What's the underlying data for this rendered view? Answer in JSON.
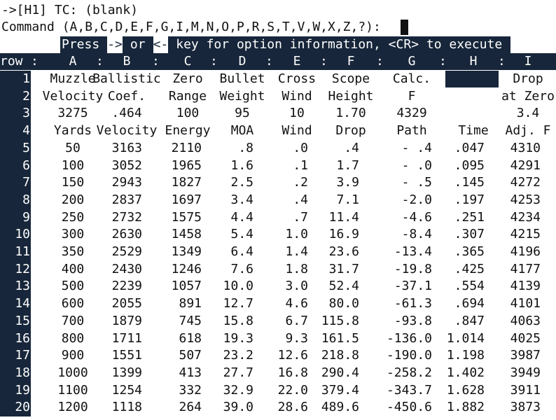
{
  "status_line": "->[H1] TC: (blank)",
  "command_line": "Command (A,B,C,D,E,F,G,I,M,N,O,P,R,S,T,V,W,X,Z,?):",
  "prompt": {
    "parts": [
      "Press",
      "->",
      "or",
      "<-",
      "key for option information, <CR> to execute"
    ]
  },
  "table": {
    "row_label": "row",
    "separator": ":",
    "columns": [
      "A",
      "B",
      "C",
      "D",
      "E",
      "F",
      "G",
      "H",
      "I"
    ],
    "row_numbers": [
      "1",
      "2",
      "3",
      "4",
      "5",
      "6",
      "7",
      "8",
      "9",
      "10",
      "11",
      "12",
      "13",
      "14",
      "15",
      "16",
      "17",
      "18",
      "19",
      "20"
    ],
    "rows": [
      [
        "Muzzle",
        "Ballistic",
        "Zero",
        "Bullet",
        "Cross",
        "Scope",
        "Calc.",
        "",
        "Drop"
      ],
      [
        "Velocity",
        "Coef.",
        "Range",
        "Weight",
        "Wind",
        "Height",
        "F",
        "",
        "at Zero"
      ],
      [
        "3275",
        ".464",
        "100",
        "95",
        "10",
        "1.70",
        "4329",
        "",
        "3.4"
      ],
      [
        "Yards",
        "Velocity",
        "Energy",
        "MOA",
        "Wind",
        "Drop",
        "Path",
        "Time",
        "Adj. F"
      ],
      [
        "50",
        "3163",
        "2110",
        ".8",
        ".0",
        ".4",
        "- .4",
        ".047",
        "4310"
      ],
      [
        "100",
        "3052",
        "1965",
        "1.6",
        ".1",
        "1.7",
        "- .0",
        ".095",
        "4291"
      ],
      [
        "150",
        "2943",
        "1827",
        "2.5",
        ".2",
        "3.9",
        "- .5",
        ".145",
        "4272"
      ],
      [
        "200",
        "2837",
        "1697",
        "3.4",
        ".4",
        "7.1",
        "-2.0",
        ".197",
        "4253"
      ],
      [
        "250",
        "2732",
        "1575",
        "4.4",
        ".7",
        "11.4",
        "-4.6",
        ".251",
        "4234"
      ],
      [
        "300",
        "2630",
        "1458",
        "5.4",
        "1.0",
        "16.9",
        "-8.4",
        ".307",
        "4215"
      ],
      [
        "350",
        "2529",
        "1349",
        "6.4",
        "1.4",
        "23.6",
        "-13.4",
        ".365",
        "4196"
      ],
      [
        "400",
        "2430",
        "1246",
        "7.6",
        "1.8",
        "31.7",
        "-19.8",
        ".425",
        "4177"
      ],
      [
        "500",
        "2239",
        "1057",
        "10.0",
        "3.0",
        "52.4",
        "-37.1",
        ".554",
        "4139"
      ],
      [
        "600",
        "2055",
        "891",
        "12.7",
        "4.6",
        "80.0",
        "-61.3",
        ".694",
        "4101"
      ],
      [
        "700",
        "1879",
        "745",
        "15.8",
        "6.7",
        "115.8",
        "-93.8",
        ".847",
        "4063"
      ],
      [
        "800",
        "1711",
        "618",
        "19.3",
        "9.3",
        "161.5",
        "-136.0",
        "1.014",
        "4025"
      ],
      [
        "900",
        "1551",
        "507",
        "23.2",
        "12.6",
        "218.8",
        "-190.0",
        "1.198",
        "3987"
      ],
      [
        "1000",
        "1399",
        "413",
        "27.7",
        "16.8",
        "290.4",
        "-258.2",
        "1.402",
        "3949"
      ],
      [
        "1100",
        "1254",
        "332",
        "32.9",
        "22.0",
        "379.4",
        "-343.7",
        "1.628",
        "3911"
      ],
      [
        "1200",
        "1118",
        "264",
        "39.0",
        "28.6",
        "489.6",
        "-450.6",
        "1.882",
        "3873"
      ]
    ],
    "cursor_cell": "H1"
  }
}
